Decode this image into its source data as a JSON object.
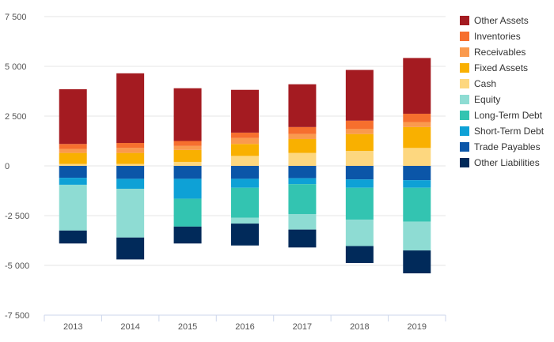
{
  "chart_data": {
    "type": "bar",
    "stacked": true,
    "categories": [
      "2013",
      "2014",
      "2015",
      "2016",
      "2017",
      "2018",
      "2019"
    ],
    "y_ticks": [
      "7 500",
      "5 000",
      "2 500",
      "0",
      "-2 500",
      "-5 000",
      "-7 500"
    ],
    "ylim": [
      -7500,
      7500
    ],
    "grid": true,
    "legend_position": "right",
    "series": [
      {
        "name": "Trade Payables",
        "color": "#0b56a8",
        "values": [
          -600,
          -650,
          -650,
          -650,
          -620,
          -680,
          -720
        ]
      },
      {
        "name": "Short-Term Debt",
        "color": "#0ea1d6",
        "values": [
          -350,
          -500,
          -1000,
          -450,
          -300,
          -420,
          -380
        ]
      },
      {
        "name": "Long-Term Debt",
        "color": "#33c4b1",
        "values": [
          0,
          0,
          -1400,
          -1500,
          -1500,
          -1600,
          -1700
        ]
      },
      {
        "name": "Equity",
        "color": "#8edcd3",
        "values": [
          -2300,
          -2450,
          0,
          -300,
          -780,
          -1330,
          -1450
        ]
      },
      {
        "name": "Cash",
        "color": "#fdd77f",
        "values": [
          100,
          100,
          200,
          500,
          650,
          750,
          900
        ]
      },
      {
        "name": "Fixed Assets",
        "color": "#f9b000",
        "values": [
          550,
          550,
          600,
          600,
          700,
          850,
          1050
        ]
      },
      {
        "name": "Receivables",
        "color": "#fa9a4e",
        "values": [
          200,
          250,
          200,
          300,
          250,
          250,
          250
        ]
      },
      {
        "name": "Inventories",
        "color": "#f66f2e",
        "values": [
          250,
          250,
          250,
          270,
          350,
          420,
          420
        ]
      },
      {
        "name": "Other Assets",
        "color": "#a41b21",
        "values": [
          2750,
          3500,
          2650,
          2150,
          2150,
          2550,
          2800
        ]
      },
      {
        "name": "Other Liabilities",
        "color": "#012a5a",
        "values": [
          -650,
          -1100,
          -850,
          -1100,
          -900,
          -850,
          -1150
        ]
      }
    ],
    "legend": [
      "Other Assets",
      "Inventories",
      "Receivables",
      "Fixed Assets",
      "Cash",
      "Equity",
      "Long-Term Debt",
      "Short-Term Debt",
      "Trade Payables",
      "Other Liabilities"
    ]
  }
}
